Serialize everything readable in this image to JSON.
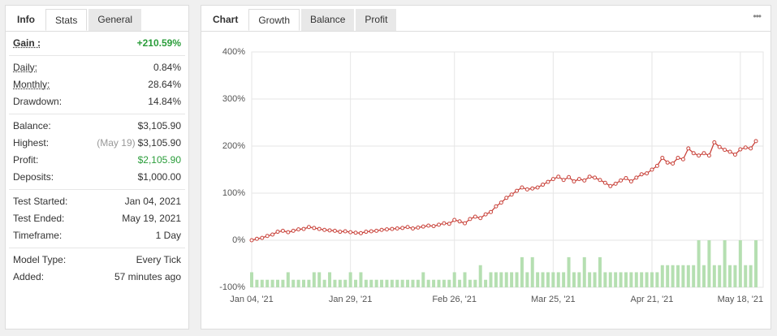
{
  "left_panel": {
    "tabs": [
      "Info",
      "Stats",
      "General"
    ],
    "active_tab": 1,
    "groups": [
      [
        {
          "label": "Gain :",
          "value": "+210.59%",
          "color": "#2a9d3a",
          "bold": true,
          "underline": true
        }
      ],
      [
        {
          "label": "Daily:",
          "value": "0.84%",
          "underline": true
        },
        {
          "label": "Monthly:",
          "value": "28.64%",
          "underline": true
        },
        {
          "label": "Drawdown:",
          "value": "14.84%"
        }
      ],
      [
        {
          "label": "Balance:",
          "value": "$3,105.90"
        },
        {
          "label": "Highest:",
          "note": "(May 19)",
          "value": "$3,105.90"
        },
        {
          "label": "Profit:",
          "value": "$2,105.90",
          "color": "#2a9d3a"
        },
        {
          "label": "Deposits:",
          "value": "$1,000.00"
        }
      ],
      [
        {
          "label": "Test Started:",
          "value": "Jan 04, 2021"
        },
        {
          "label": "Test Ended:",
          "value": "May 19, 2021"
        },
        {
          "label": "Timeframe:",
          "value": "1 Day"
        }
      ],
      [
        {
          "label": "Model Type:",
          "value": "Every Tick"
        },
        {
          "label": "Added:",
          "value": "57 minutes ago"
        }
      ]
    ]
  },
  "right_panel": {
    "tabs": [
      "Chart",
      "Growth",
      "Balance",
      "Profit"
    ],
    "active_tab": 1,
    "menu": "•••"
  },
  "chart_data": {
    "type": "line",
    "xlim": [
      0,
      98.4
    ],
    "xticks": [
      {
        "value": 0,
        "label": "Jan 04, '21"
      },
      {
        "value": 19,
        "label": "Jan 29, '21"
      },
      {
        "value": 39,
        "label": "Feb 26, '21"
      },
      {
        "value": 58,
        "label": "Mar 25, '21"
      },
      {
        "value": 77,
        "label": "Apr 21, '21"
      },
      {
        "value": 94,
        "label": "May 18, '21"
      }
    ],
    "ylim": [
      -100,
      400
    ],
    "yticks": [
      {
        "value": -100,
        "label": "-100%"
      },
      {
        "value": 0,
        "label": "0%"
      },
      {
        "value": 100,
        "label": "100%"
      },
      {
        "value": 200,
        "label": "200%"
      },
      {
        "value": 300,
        "label": "300%"
      },
      {
        "value": 400,
        "label": "400%"
      }
    ],
    "grid": true,
    "series": [
      {
        "type": "line",
        "color": "#c9433b",
        "values": [
          0,
          3,
          5,
          9,
          12,
          18,
          20,
          17,
          20,
          23,
          24,
          28,
          26,
          24,
          22,
          21,
          20,
          18,
          19,
          17,
          16,
          15,
          18,
          19,
          20,
          22,
          23,
          24,
          25,
          26,
          28,
          25,
          27,
          29,
          31,
          30,
          33,
          36,
          35,
          43,
          40,
          36,
          45,
          50,
          47,
          55,
          60,
          72,
          80,
          90,
          97,
          105,
          112,
          108,
          110,
          112,
          118,
          124,
          130,
          135,
          128,
          134,
          125,
          130,
          127,
          135,
          133,
          128,
          122,
          115,
          120,
          127,
          132,
          125,
          133,
          140,
          142,
          150,
          158,
          175,
          165,
          163,
          175,
          172,
          195,
          185,
          180,
          185,
          180,
          208,
          198,
          192,
          188,
          182,
          193,
          197,
          195,
          210.59
        ]
      },
      {
        "type": "bar",
        "color": "#b5dfb1",
        "values": [
          -68,
          -84,
          -84,
          -84,
          -84,
          -84,
          -84,
          -68,
          -84,
          -84,
          -84,
          -84,
          -68,
          -68,
          -84,
          -68,
          -84,
          -84,
          -84,
          -68,
          -84,
          -68,
          -84,
          -84,
          -84,
          -84,
          -84,
          -84,
          -84,
          -84,
          -84,
          -84,
          -84,
          -68,
          -84,
          -84,
          -84,
          -84,
          -84,
          -68,
          -84,
          -68,
          -84,
          -84,
          -53,
          -84,
          -68,
          -68,
          -68,
          -68,
          -68,
          -68,
          -36,
          -68,
          -36,
          -68,
          -68,
          -68,
          -68,
          -68,
          -68,
          -36,
          -68,
          -68,
          -36,
          -68,
          -68,
          -36,
          -68,
          -68,
          -68,
          -68,
          -68,
          -68,
          -68,
          -68,
          -68,
          -68,
          -68,
          -53,
          -53,
          -53,
          -53,
          -53,
          -53,
          -53,
          0,
          -53,
          0,
          -53,
          -53,
          0,
          -53,
          -53,
          0,
          -53,
          -53,
          0
        ]
      }
    ]
  }
}
